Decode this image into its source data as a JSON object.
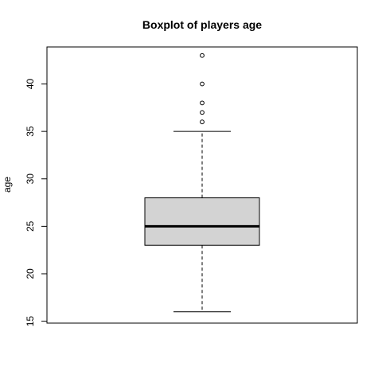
{
  "chart_data": {
    "type": "boxplot",
    "title": "Boxplot of players age",
    "xlabel": "",
    "ylabel": "age",
    "ylim": [
      14.8,
      43.9
    ],
    "yticks": [
      15,
      20,
      25,
      30,
      35,
      40
    ],
    "yticks_labels": [
      "15",
      "20",
      "25",
      "30",
      "35",
      "40"
    ],
    "box": {
      "whisker_low": 16,
      "q1": 23,
      "median": 25,
      "q3": 28,
      "whisker_high": 35,
      "outliers": [
        36,
        37,
        38,
        40,
        43
      ]
    },
    "colors": {
      "box_fill": "#d3d3d3",
      "line": "#000000"
    },
    "grid": false
  }
}
